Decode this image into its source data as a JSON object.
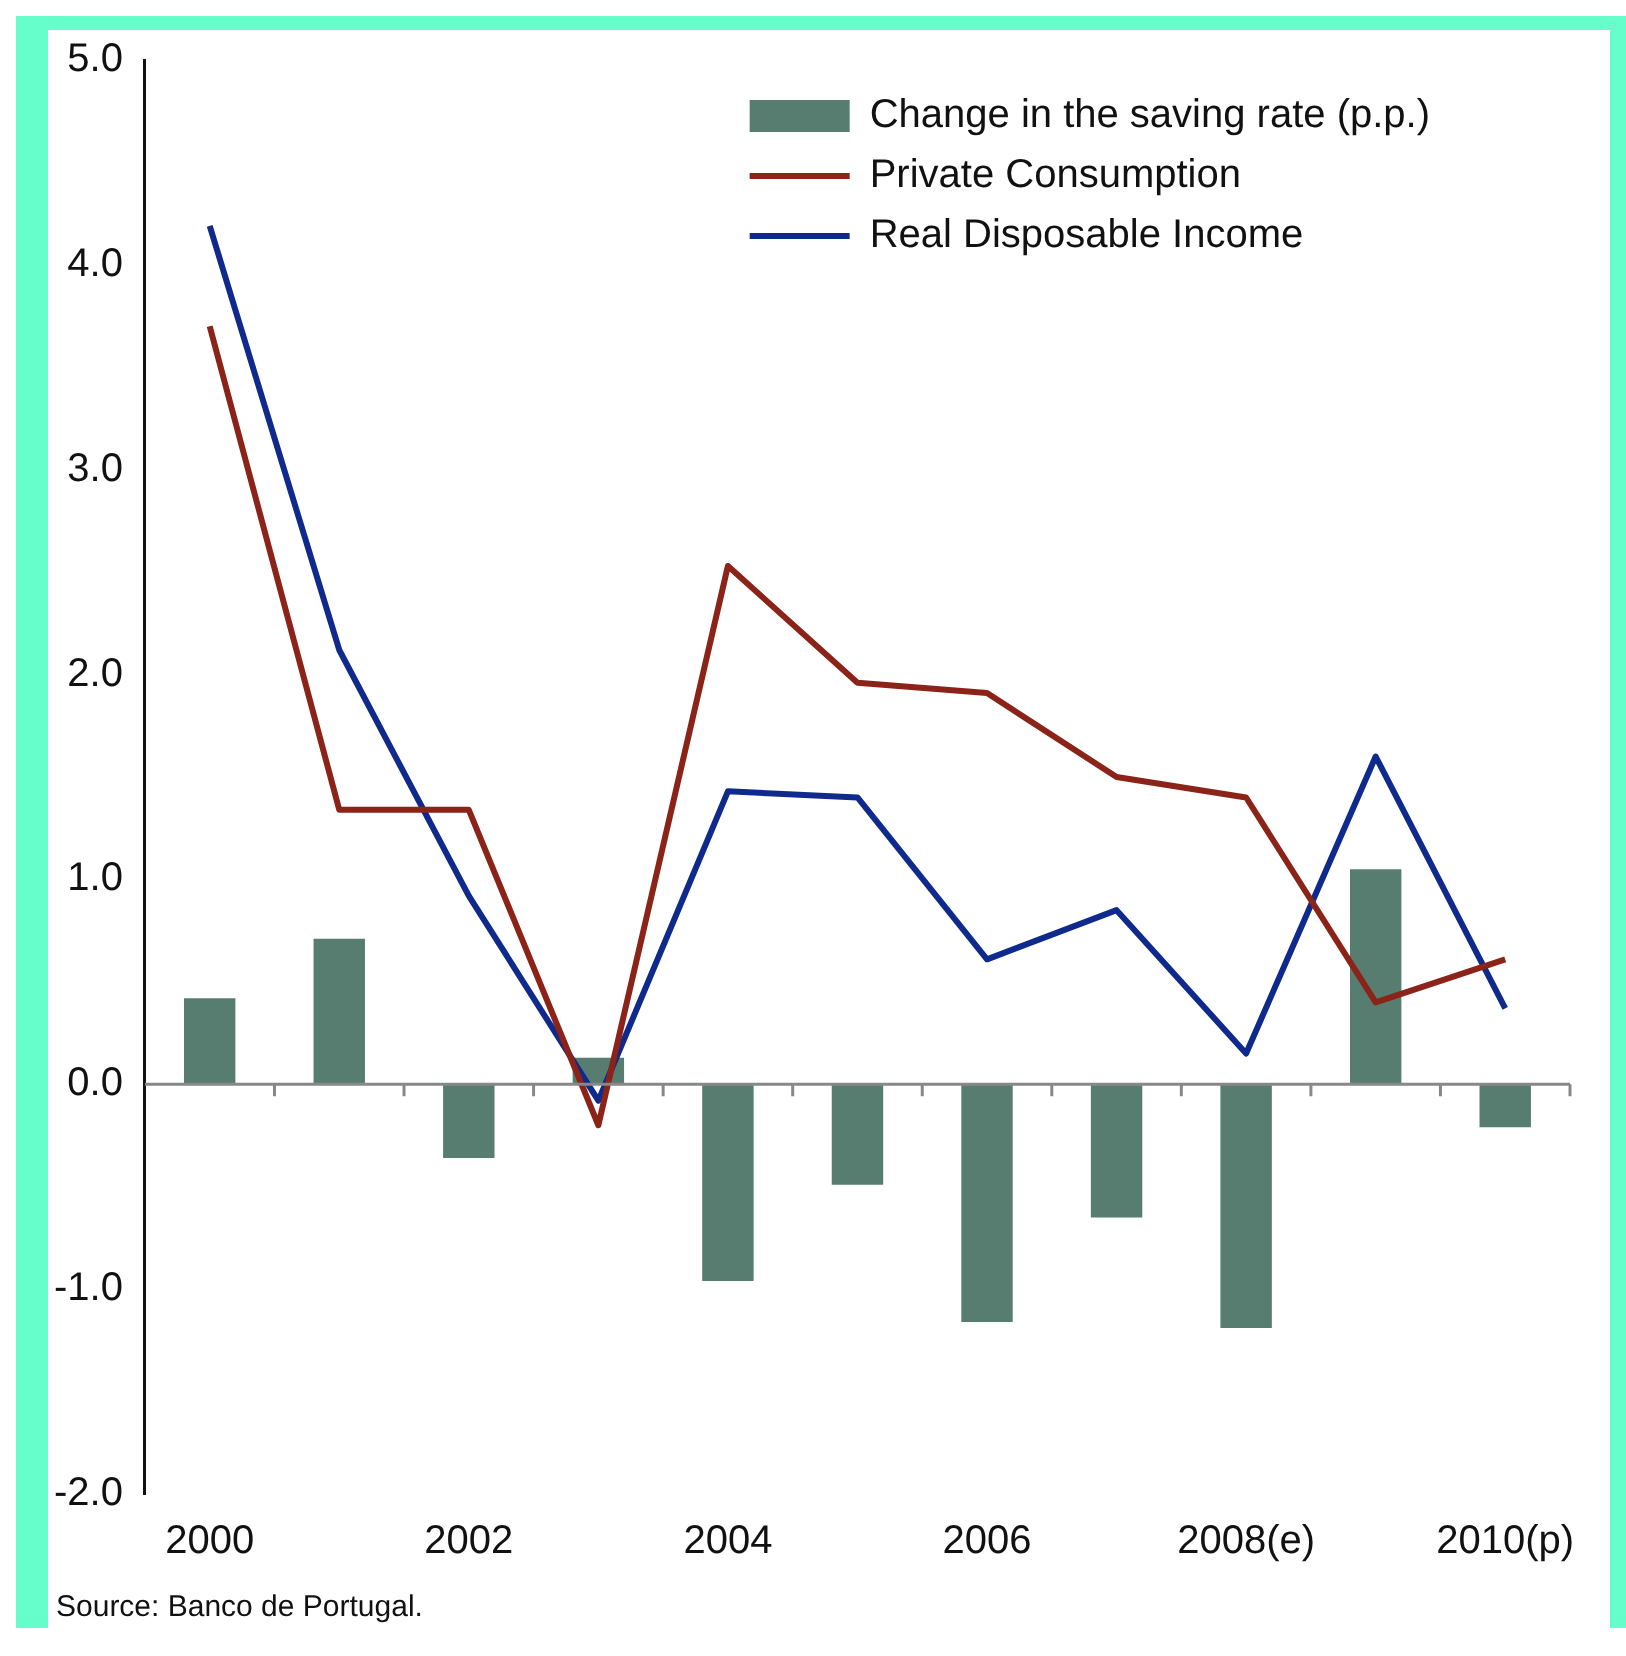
{
  "chart_data": {
    "type": "bar",
    "categories": [
      "2000",
      null,
      "2002",
      null,
      "2004",
      null,
      "2006",
      null,
      "2008(e)",
      null,
      "2010(p)"
    ],
    "series": [
      {
        "name": "Change in the saving rate (p.p.)",
        "color": "#577d70",
        "values": [
          0.42,
          0.71,
          -0.36,
          0.13,
          -0.96,
          -0.49,
          -1.16,
          -0.65,
          -1.19,
          1.05,
          -0.21
        ]
      },
      {
        "name": "Private Consumption",
        "type": "line",
        "color": "#8b2318",
        "values": [
          3.7,
          1.34,
          1.34,
          -0.2,
          2.53,
          1.96,
          1.91,
          1.5,
          1.4,
          0.4,
          0.61
        ]
      },
      {
        "name": "Real Disposable Income",
        "type": "line",
        "color": "#0f2a8c",
        "values": [
          4.19,
          2.12,
          0.92,
          -0.08,
          1.43,
          1.4,
          0.61,
          0.85,
          0.15,
          1.6,
          0.37
        ]
      }
    ],
    "ylim": [
      -2,
      5
    ],
    "yticks": [
      {
        "value": -2,
        "label": "-2.0"
      },
      {
        "value": -1,
        "label": "-1.0"
      },
      {
        "value": 0,
        "label": "0.0"
      },
      {
        "value": 1,
        "label": "1.0"
      },
      {
        "value": 2,
        "label": "2.0"
      },
      {
        "value": 3,
        "label": "3.0"
      },
      {
        "value": 4,
        "label": "4.0"
      },
      {
        "value": 5,
        "label": "5.0"
      }
    ],
    "legend": "top right",
    "marker": "none",
    "line_style": "solid",
    "annotations": [
      "Source: Banco de Portugal."
    ]
  }
}
